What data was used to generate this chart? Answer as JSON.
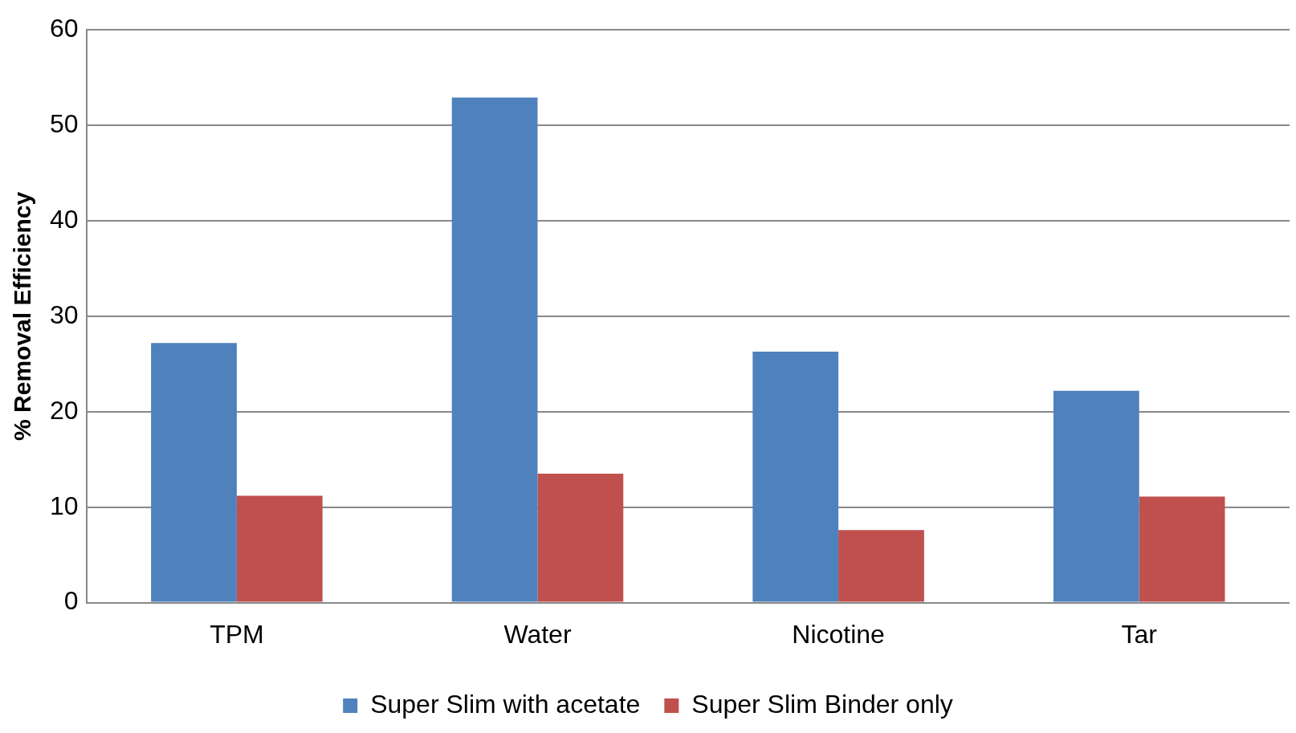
{
  "chart_data": {
    "type": "bar",
    "ylabel": "% Removal Efficiency",
    "categories": [
      "TPM",
      "Water",
      "Nicotine",
      "Tar"
    ],
    "series": [
      {
        "name": "Super Slim with acetate",
        "color": "#4f81bd",
        "values": [
          27.2,
          52.9,
          26.3,
          22.2
        ]
      },
      {
        "name": "Super Slim Binder only",
        "color": "#c0504d",
        "values": [
          11.2,
          13.5,
          7.6,
          11.1
        ]
      }
    ],
    "ylim": [
      0,
      60
    ],
    "yticks": [
      0,
      10,
      20,
      30,
      40,
      50,
      60
    ],
    "grid": "y",
    "legend": "bottom"
  }
}
